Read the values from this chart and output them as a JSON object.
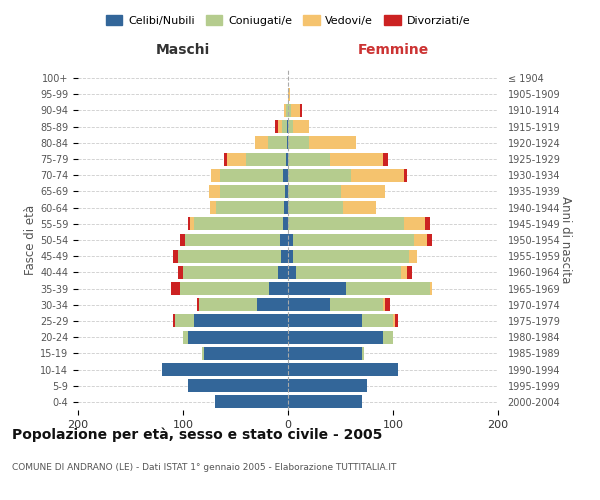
{
  "age_groups": [
    "0-4",
    "5-9",
    "10-14",
    "15-19",
    "20-24",
    "25-29",
    "30-34",
    "35-39",
    "40-44",
    "45-49",
    "50-54",
    "55-59",
    "60-64",
    "65-69",
    "70-74",
    "75-79",
    "80-84",
    "85-89",
    "90-94",
    "95-99",
    "100+"
  ],
  "birth_years": [
    "2000-2004",
    "1995-1999",
    "1990-1994",
    "1985-1989",
    "1980-1984",
    "1975-1979",
    "1970-1974",
    "1965-1969",
    "1960-1964",
    "1955-1959",
    "1950-1954",
    "1945-1949",
    "1940-1944",
    "1935-1939",
    "1930-1934",
    "1925-1929",
    "1920-1924",
    "1915-1919",
    "1910-1914",
    "1905-1909",
    "≤ 1904"
  ],
  "male": {
    "celibi": [
      70,
      95,
      120,
      80,
      95,
      90,
      30,
      18,
      10,
      7,
      8,
      5,
      4,
      3,
      5,
      2,
      1,
      1,
      0,
      0,
      0
    ],
    "coniugati": [
      0,
      0,
      0,
      2,
      5,
      18,
      55,
      85,
      90,
      98,
      90,
      85,
      65,
      62,
      60,
      38,
      18,
      5,
      2,
      0,
      0
    ],
    "vedovi": [
      0,
      0,
      0,
      0,
      0,
      0,
      0,
      0,
      0,
      0,
      0,
      3,
      5,
      10,
      8,
      18,
      12,
      4,
      2,
      0,
      0
    ],
    "divorziati": [
      0,
      0,
      0,
      0,
      0,
      2,
      2,
      8,
      5,
      5,
      5,
      2,
      0,
      0,
      0,
      3,
      0,
      2,
      0,
      0,
      0
    ]
  },
  "female": {
    "nubili": [
      70,
      75,
      105,
      70,
      90,
      70,
      40,
      55,
      8,
      5,
      5,
      0,
      0,
      0,
      0,
      0,
      0,
      0,
      0,
      0,
      0
    ],
    "coniugate": [
      0,
      0,
      0,
      2,
      10,
      30,
      50,
      80,
      100,
      110,
      115,
      110,
      52,
      50,
      60,
      40,
      20,
      5,
      3,
      0,
      0
    ],
    "vedove": [
      0,
      0,
      0,
      0,
      0,
      2,
      2,
      2,
      5,
      8,
      12,
      20,
      32,
      42,
      50,
      50,
      45,
      15,
      8,
      2,
      0
    ],
    "divorziate": [
      0,
      0,
      0,
      0,
      0,
      3,
      5,
      0,
      5,
      0,
      5,
      5,
      0,
      0,
      3,
      5,
      0,
      0,
      2,
      0,
      0
    ]
  },
  "colors": {
    "celibi": "#336699",
    "coniugati": "#b5cc8e",
    "vedovi": "#f5c36e",
    "divorziati": "#cc2222"
  },
  "xlim": 200,
  "title": "Popolazione per età, sesso e stato civile - 2005",
  "subtitle": "COMUNE DI ANDRANO (LE) - Dati ISTAT 1° gennaio 2005 - Elaborazione TUTTITALIA.IT",
  "ylabel_left": "Fasce di età",
  "ylabel_right": "Anni di nascita",
  "xlabel_left": "Maschi",
  "xlabel_right": "Femmine",
  "legend_labels": [
    "Celibi/Nubili",
    "Coniugati/e",
    "Vedovi/e",
    "Divorziati/e"
  ],
  "background_color": "#ffffff",
  "bar_height": 0.8
}
